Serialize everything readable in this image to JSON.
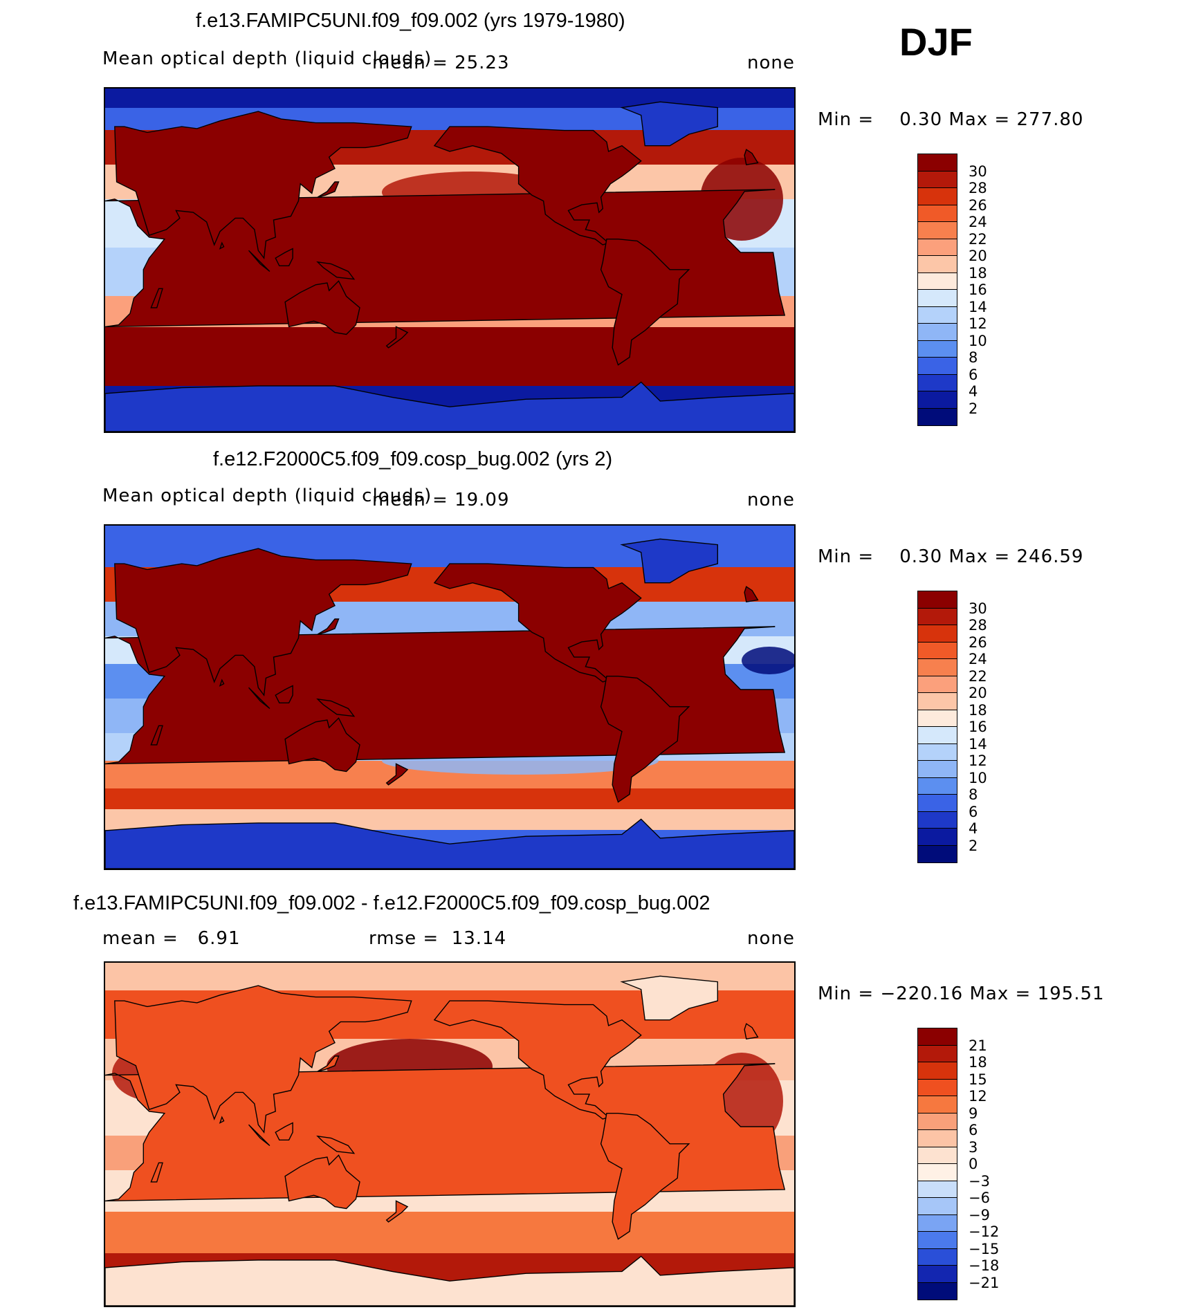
{
  "season": "DJF",
  "panels": [
    {
      "title": "f.e13.FAMIPC5UNI.f09_f09.002 (yrs 1979-1980)",
      "variable": "Mean optical depth (liquid clouds)",
      "mean_label": "mean =",
      "mean": "25.23",
      "units": "none",
      "min_label": "Min =",
      "min": "0.30",
      "max_label": "Max =",
      "max": "277.80",
      "scheme": "abs",
      "levels": [
        "30",
        "28",
        "26",
        "24",
        "22",
        "20",
        "18",
        "16",
        "14",
        "12",
        "10",
        "8",
        "6",
        "4",
        "2"
      ],
      "colors": [
        "#8b0000",
        "#b3190a",
        "#d7330c",
        "#f05a28",
        "#f7804e",
        "#fba07c",
        "#fcc6a8",
        "#fdeadc",
        "#d5e8fb",
        "#b4d2fa",
        "#8fb6f6",
        "#5c8ff0",
        "#3a63e6",
        "#1e39c8",
        "#0b1aa0",
        "#000c7a"
      ]
    },
    {
      "title": "f.e12.F2000C5.f09_f09.cosp_bug.002 (yrs 2)",
      "variable": "Mean optical depth (liquid clouds)",
      "mean_label": "mean =",
      "mean": "19.09",
      "units": "none",
      "min_label": "Min =",
      "min": "0.30",
      "max_label": "Max =",
      "max": "246.59",
      "scheme": "abs",
      "levels": [
        "30",
        "28",
        "26",
        "24",
        "22",
        "20",
        "18",
        "16",
        "14",
        "12",
        "10",
        "8",
        "6",
        "4",
        "2"
      ],
      "colors": [
        "#8b0000",
        "#b3190a",
        "#d7330c",
        "#f05a28",
        "#f7804e",
        "#fba07c",
        "#fcc6a8",
        "#fdeadc",
        "#d5e8fb",
        "#b4d2fa",
        "#8fb6f6",
        "#5c8ff0",
        "#3a63e6",
        "#1e39c8",
        "#0b1aa0",
        "#000c7a"
      ]
    },
    {
      "title": "f.e13.FAMIPC5UNI.f09_f09.002 - f.e12.F2000C5.f09_f09.cosp_bug.002",
      "variable": "",
      "mean_label": "mean =",
      "mean": "6.91",
      "rmse_label": "rmse =",
      "rmse": "13.14",
      "units": "none",
      "min_label": "Min =",
      "min": "−220.16",
      "max_label": "Max =",
      "max": "195.51",
      "scheme": "diff",
      "levels": [
        "21",
        "18",
        "15",
        "12",
        "9",
        "6",
        "3",
        "0",
        "−3",
        "−6",
        "−9",
        "−12",
        "−15",
        "−18",
        "−21"
      ],
      "colors": [
        "#8b0000",
        "#b3190a",
        "#d7330c",
        "#ef5020",
        "#f6783f",
        "#f9a07a",
        "#fcc4a6",
        "#fde2d0",
        "#fff1e6",
        "#c9defa",
        "#a6c6f8",
        "#7aa4f3",
        "#4b7aec",
        "#2a4fd8",
        "#1326b0",
        "#000c7a"
      ]
    }
  ],
  "chart_data": [
    {
      "type": "heatmap",
      "title": "f.e13.FAMIPC5UNI.f09_f09.002 (yrs 1979-1980)",
      "field": "Mean optical depth (liquid clouds)",
      "season": "DJF",
      "mean": 25.23,
      "min": 0.3,
      "max": 277.8,
      "units": "none",
      "contour_levels": [
        2,
        4,
        6,
        8,
        10,
        12,
        14,
        16,
        18,
        20,
        22,
        24,
        26,
        28,
        30
      ]
    },
    {
      "type": "heatmap",
      "title": "f.e12.F2000C5.f09_f09.cosp_bug.002 (yrs 2)",
      "field": "Mean optical depth (liquid clouds)",
      "season": "DJF",
      "mean": 19.09,
      "min": 0.3,
      "max": 246.59,
      "units": "none",
      "contour_levels": [
        2,
        4,
        6,
        8,
        10,
        12,
        14,
        16,
        18,
        20,
        22,
        24,
        26,
        28,
        30
      ]
    },
    {
      "type": "heatmap",
      "title": "f.e13.FAMIPC5UNI.f09_f09.002 - f.e12.F2000C5.f09_f09.cosp_bug.002",
      "season": "DJF",
      "mean": 6.91,
      "rmse": 13.14,
      "min": -220.16,
      "max": 195.51,
      "units": "none",
      "contour_levels": [
        -21,
        -18,
        -15,
        -12,
        -9,
        -6,
        -3,
        0,
        3,
        6,
        9,
        12,
        15,
        18,
        21
      ]
    }
  ]
}
